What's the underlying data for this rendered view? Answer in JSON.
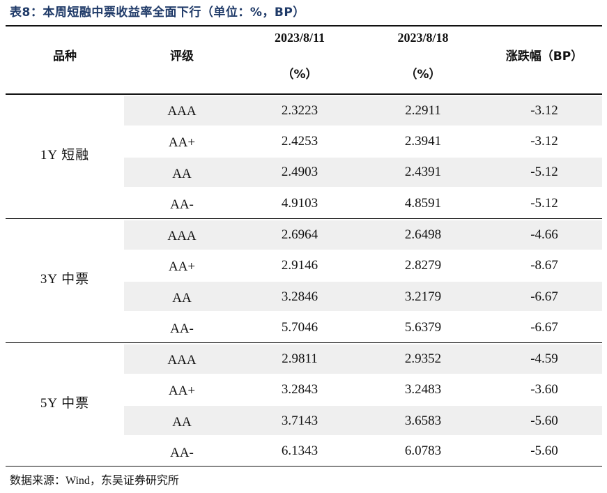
{
  "title": "表8：本周短融中票收益率全面下行（单位：%，BP）",
  "headers": {
    "variety": "品种",
    "rating": "评级",
    "date1": "2023/8/11",
    "date1_unit": "（%）",
    "date2": "2023/8/18",
    "date2_unit": "（%）",
    "change": "涨跌幅（BP）"
  },
  "groups": [
    {
      "name": "1Y 短融",
      "rows": [
        {
          "rating": "AAA",
          "v1": "2.3223",
          "v2": "2.2911",
          "change": "-3.12"
        },
        {
          "rating": "AA+",
          "v1": "2.4253",
          "v2": "2.3941",
          "change": "-3.12"
        },
        {
          "rating": "AA",
          "v1": "2.4903",
          "v2": "2.4391",
          "change": "-5.12"
        },
        {
          "rating": "AA-",
          "v1": "4.9103",
          "v2": "4.8591",
          "change": "-5.12"
        }
      ]
    },
    {
      "name": "3Y 中票",
      "rows": [
        {
          "rating": "AAA",
          "v1": "2.6964",
          "v2": "2.6498",
          "change": "-4.66"
        },
        {
          "rating": "AA+",
          "v1": "2.9146",
          "v2": "2.8279",
          "change": "-8.67"
        },
        {
          "rating": "AA",
          "v1": "3.2846",
          "v2": "3.2179",
          "change": "-6.67"
        },
        {
          "rating": "AA-",
          "v1": "5.7046",
          "v2": "5.6379",
          "change": "-6.67"
        }
      ]
    },
    {
      "name": "5Y 中票",
      "rows": [
        {
          "rating": "AAA",
          "v1": "2.9811",
          "v2": "2.9352",
          "change": "-4.59"
        },
        {
          "rating": "AA+",
          "v1": "3.2843",
          "v2": "3.2483",
          "change": "-3.60"
        },
        {
          "rating": "AA",
          "v1": "3.7143",
          "v2": "3.6583",
          "change": "-5.60"
        },
        {
          "rating": "AA-",
          "v1": "6.1343",
          "v2": "6.0783",
          "change": "-5.60"
        }
      ]
    }
  ],
  "source": "数据来源：Wind，东吴证券研究所",
  "colors": {
    "title": "#1f3a68",
    "band": "#efefef",
    "rule": "#111111"
  }
}
